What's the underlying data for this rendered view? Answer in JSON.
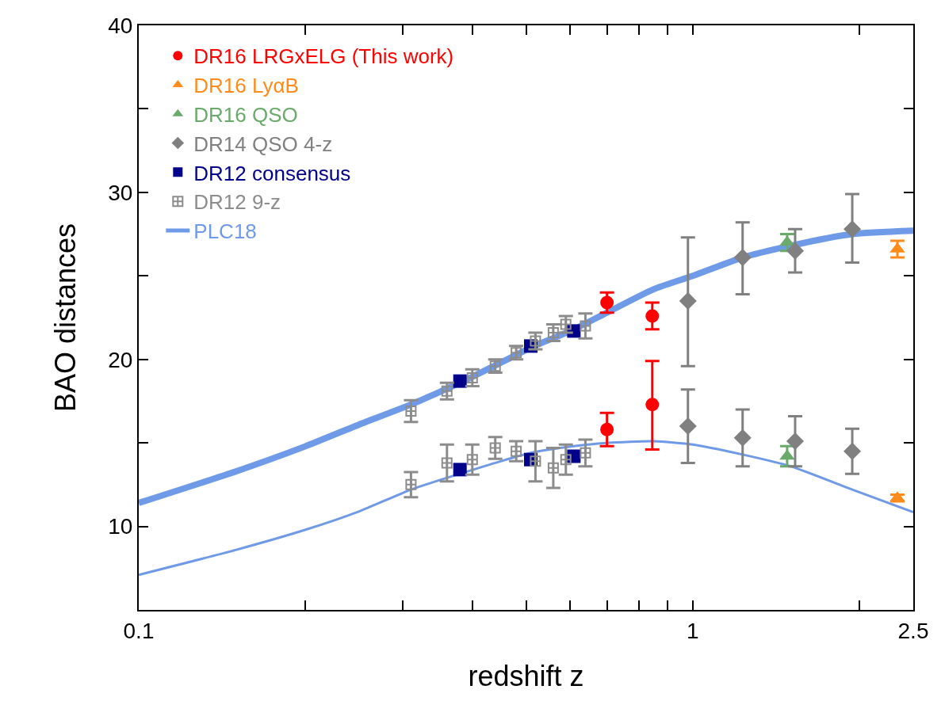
{
  "chart_data": {
    "type": "scatter",
    "xlabel": "redshift z",
    "ylabel": "BAO distances",
    "log": "x",
    "xlim": [
      0.1,
      2.5
    ],
    "xticks": [
      0.1,
      {
        "value": 0.2,
        "label": null
      },
      {
        "value": 0.3,
        "label": null
      },
      {
        "value": 0.4,
        "label": null
      },
      {
        "value": 0.5,
        "label": null
      },
      {
        "value": 0.6,
        "label": null
      },
      {
        "value": 0.7,
        "label": null
      },
      {
        "value": 0.8,
        "label": null
      },
      {
        "value": 0.9,
        "label": null
      },
      1,
      {
        "value": 2,
        "label": null
      },
      2.5
    ],
    "ylim": [
      5,
      40
    ],
    "yticks": [
      {
        "value": 5,
        "label": null
      },
      10,
      {
        "value": 15,
        "label": null
      },
      20,
      {
        "value": 25,
        "label": null
      },
      30,
      {
        "value": 35,
        "label": null
      },
      40
    ],
    "grid": false,
    "legend": "top left",
    "series": [
      {
        "name": "DR16 LRGxELG (This work)",
        "color": "#ff0000",
        "marker": "circle",
        "x": [
          0.7,
          0.7,
          0.845,
          0.845
        ],
        "values": [
          23.4,
          15.8,
          22.6,
          17.3
        ],
        "errors": [
          0.6,
          1.0,
          [
            21.8,
            23.4
          ],
          [
            14.6,
            19.9
          ]
        ]
      },
      {
        "name": "DR16 LyαB",
        "color": "#ff8c1a",
        "marker": "triangle",
        "x": [
          2.34,
          2.34
        ],
        "values": [
          26.6,
          11.7
        ],
        "errors": [
          0.5,
          0.2
        ]
      },
      {
        "name": "DR16 QSO",
        "color": "#6aaa6a",
        "marker": "triangle",
        "x": [
          1.48,
          1.48
        ],
        "values": [
          27.0,
          14.2
        ],
        "errors": [
          0.5,
          0.6
        ]
      },
      {
        "name": "DR14 QSO 4-z",
        "color": "#808080",
        "marker": "diamond",
        "x": [
          0.98,
          0.98,
          1.23,
          1.23,
          1.53,
          1.53,
          1.94,
          1.94
        ],
        "values": [
          23.5,
          16.0,
          26.1,
          15.3,
          26.5,
          15.1,
          27.8,
          14.5
        ],
        "errors": [
          [
            19.6,
            27.3
          ],
          2.2,
          [
            23.9,
            28.2
          ],
          1.7,
          [
            25.2,
            27.8
          ],
          1.5,
          [
            25.8,
            29.9
          ],
          1.35
        ]
      },
      {
        "name": "DR12 consensus",
        "color": "#00008b",
        "marker": "square",
        "x": [
          0.38,
          0.38,
          0.51,
          0.51,
          0.61,
          0.61
        ],
        "values": [
          18.7,
          13.4,
          20.8,
          14.0,
          21.7,
          14.2
        ]
      },
      {
        "name": "DR12 9-z",
        "color": "#8c8c8c",
        "marker": "cross",
        "x": [
          0.31,
          0.36,
          0.4,
          0.44,
          0.48,
          0.52,
          0.56,
          0.59,
          0.64,
          0.31,
          0.36,
          0.4,
          0.44,
          0.48,
          0.52,
          0.56,
          0.59,
          0.64
        ],
        "values": [
          16.9,
          18.1,
          18.9,
          19.6,
          20.4,
          21.1,
          21.6,
          22.1,
          22.0,
          12.5,
          13.8,
          14.0,
          14.7,
          14.5,
          13.9,
          13.5,
          14.0,
          14.4
        ],
        "errors": [
          0.65,
          0.5,
          0.5,
          0.4,
          0.4,
          0.5,
          0.5,
          0.5,
          0.75,
          0.75,
          1.1,
          0.9,
          0.65,
          0.6,
          1.2,
          1.2,
          0.9,
          0.8
        ]
      },
      {
        "name": "PLC18",
        "type": "line",
        "color": "#6f9ae8",
        "x": [
          0.1,
          0.15,
          0.2,
          0.25,
          0.31,
          0.38,
          0.45,
          0.51,
          0.61,
          0.7,
          0.85,
          1.0,
          1.23,
          1.5,
          1.94,
          2.5
        ],
        "values": [
          11.4,
          13.3,
          14.8,
          16.1,
          17.3,
          18.6,
          19.8,
          20.7,
          21.8,
          22.8,
          24.2,
          25.0,
          26.1,
          26.8,
          27.5,
          27.7
        ]
      },
      {
        "type": "line",
        "color": "#6f9ae8",
        "x": [
          0.1,
          0.15,
          0.2,
          0.25,
          0.31,
          0.45,
          0.51,
          0.61,
          0.7,
          0.85,
          1.0,
          1.23,
          1.5,
          1.94,
          2.5
        ],
        "values": [
          7.1,
          8.6,
          9.8,
          10.9,
          12.2,
          13.9,
          14.4,
          14.8,
          15.0,
          15.1,
          14.9,
          14.3,
          13.6,
          12.2,
          10.85
        ]
      }
    ]
  }
}
